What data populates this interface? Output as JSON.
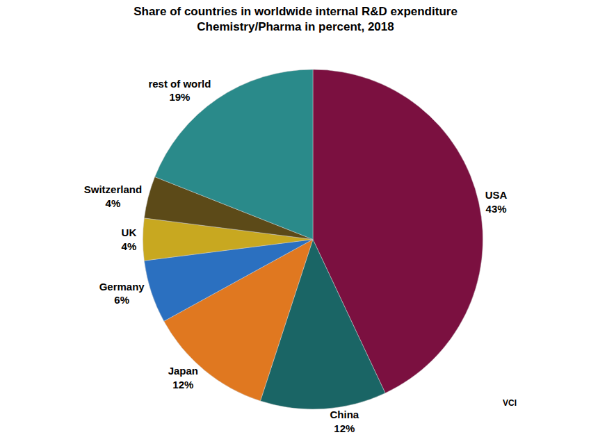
{
  "chart_data": {
    "type": "pie",
    "title": "Share of countries in worldwide internal R&D expenditure",
    "subtitle": "Chemistry/Pharma in percent, 2018",
    "categories": [
      "USA",
      "China",
      "Japan",
      "Germany",
      "UK",
      "Switzerland",
      "rest of world"
    ],
    "values": [
      43,
      12,
      12,
      6,
      4,
      4,
      19
    ],
    "value_labels": [
      "43%",
      "12%",
      "12%",
      "6%",
      "4%",
      "4%",
      "19%"
    ],
    "colors": [
      "#7B1040",
      "#1A6565",
      "#E07820",
      "#2B70C0",
      "#C8A820",
      "#5C4A18",
      "#2A8A8A"
    ],
    "data_labels": true,
    "annotations": [
      "VCI"
    ]
  }
}
